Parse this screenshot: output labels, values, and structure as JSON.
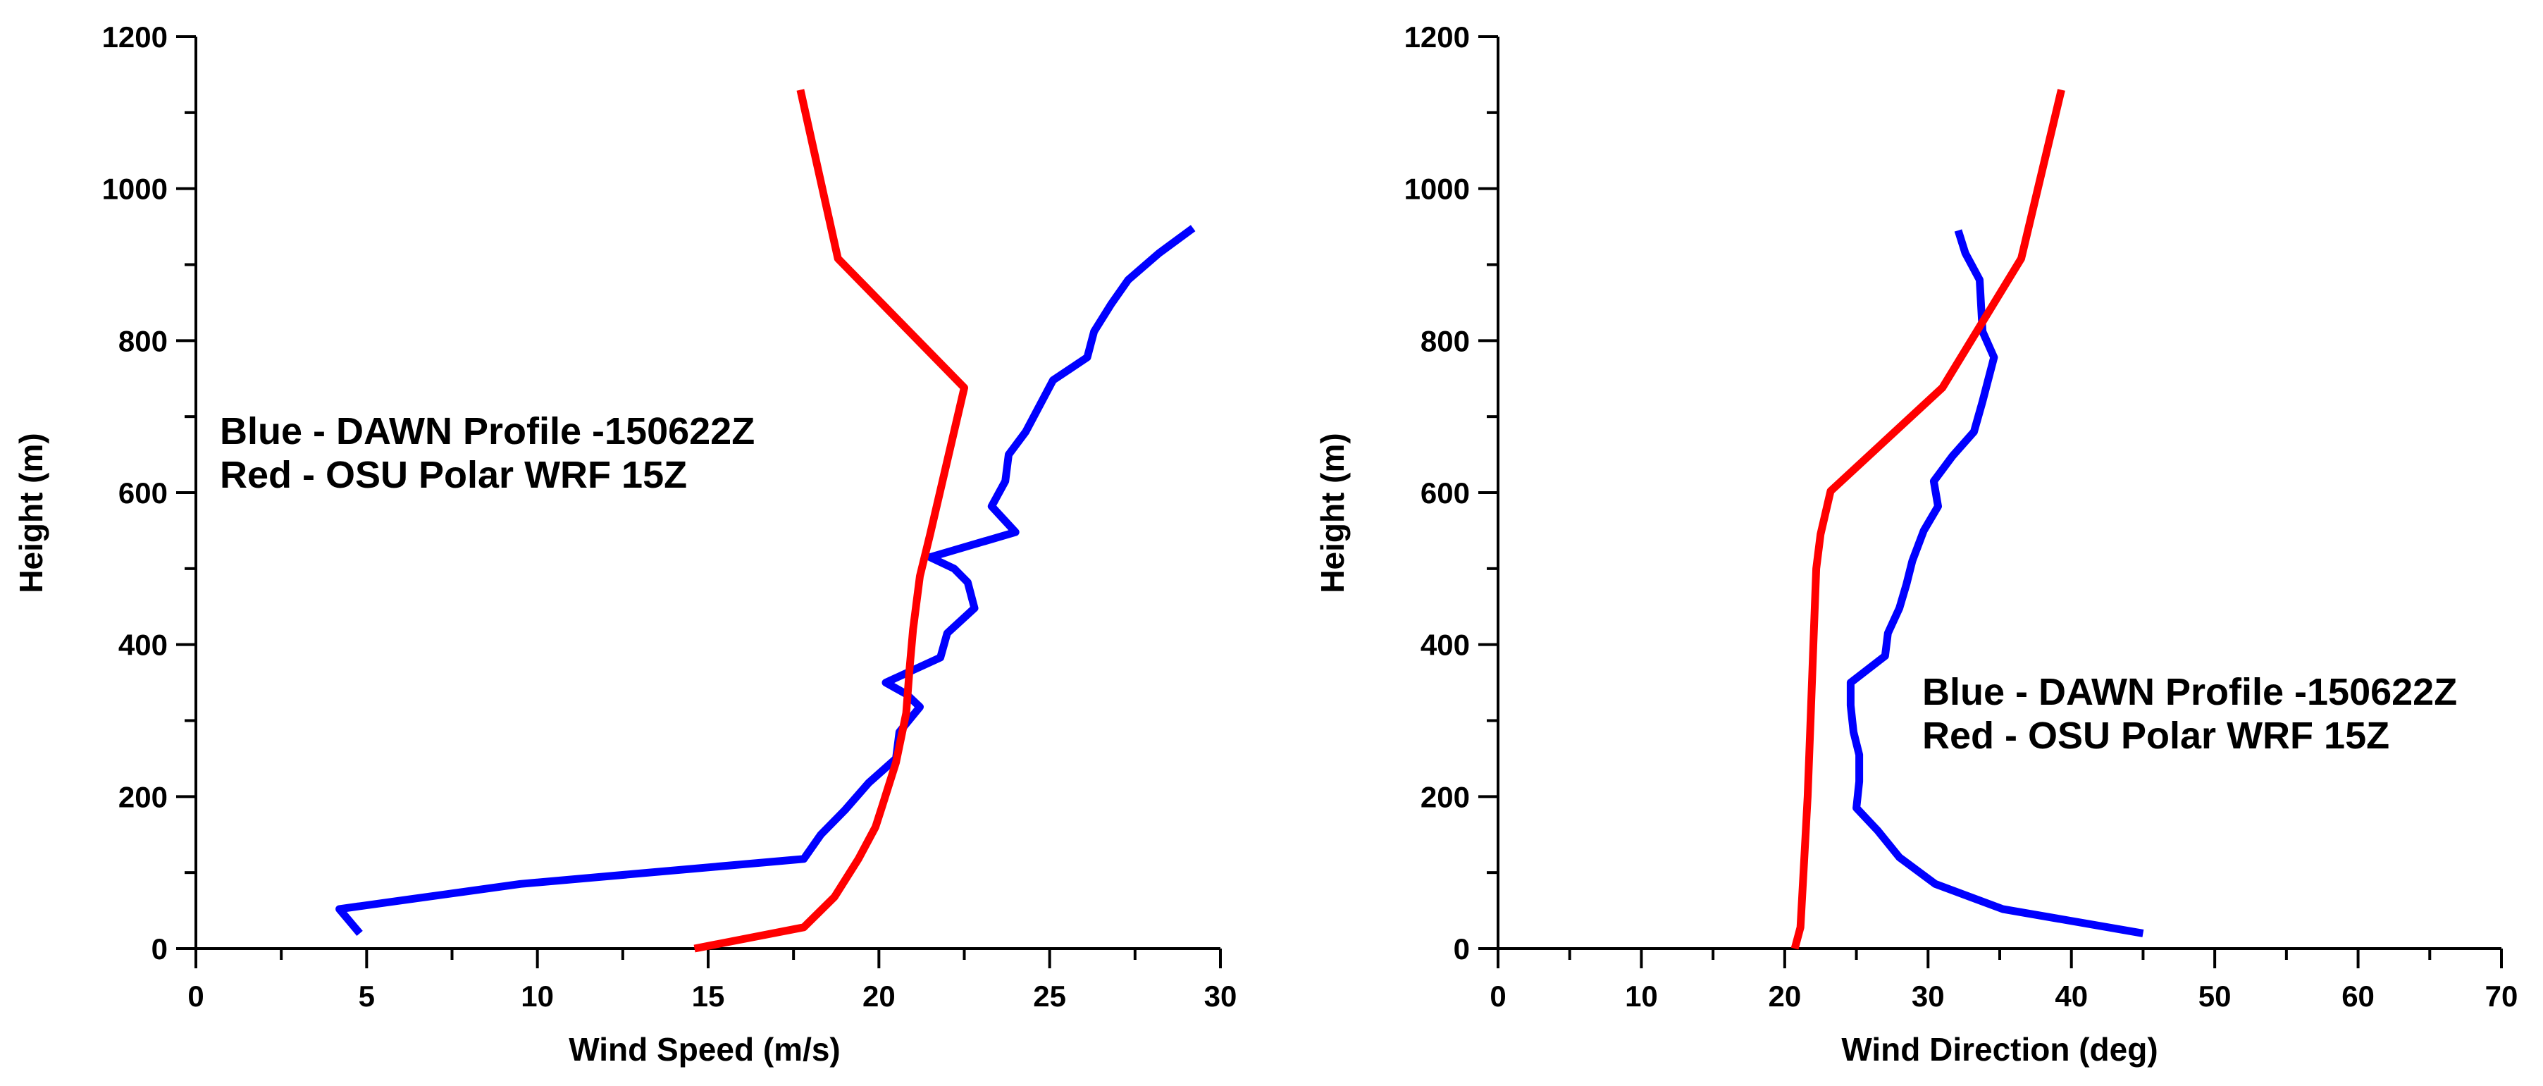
{
  "colors": {
    "blue_series": "#0000ff",
    "red_series": "#ff0000",
    "axis": "#000000",
    "background": "#ffffff"
  },
  "chart_data": [
    {
      "type": "line",
      "title": "",
      "xlabel": "Wind Speed (m/s)",
      "ylabel": "Height (m)",
      "xlim": [
        0,
        30
      ],
      "ylim": [
        0,
        1200
      ],
      "xticks": [
        0,
        5,
        10,
        15,
        20,
        25,
        30
      ],
      "yticks": [
        0,
        200,
        400,
        600,
        800,
        1000,
        1200
      ],
      "x_minor_step": 2.5,
      "y_minor_step": 100,
      "grid": false,
      "legend": {
        "placement": "upper-left",
        "lines": [
          "Blue - DAWN Profile -150622Z",
          "Red - OSU Polar WRF 15Z"
        ]
      },
      "series": [
        {
          "name": "Blue - DAWN Profile -150622Z",
          "color": "blue",
          "points": [
            [
              4.8,
              20
            ],
            [
              4.2,
              52
            ],
            [
              9.5,
              85
            ],
            [
              17.8,
              118
            ],
            [
              18.3,
              150
            ],
            [
              19,
              182
            ],
            [
              19.7,
              218
            ],
            [
              20.5,
              250
            ],
            [
              20.6,
              285
            ],
            [
              21.2,
              318
            ],
            [
              20.8,
              335
            ],
            [
              20.2,
              350
            ],
            [
              21.8,
              383
            ],
            [
              22,
              415
            ],
            [
              22.8,
              448
            ],
            [
              22.6,
              482
            ],
            [
              22.2,
              500
            ],
            [
              21.5,
              515
            ],
            [
              24,
              548
            ],
            [
              23.3,
              582
            ],
            [
              23.7,
              615
            ],
            [
              23.8,
              650
            ],
            [
              24.3,
              680
            ],
            [
              25.1,
              748
            ],
            [
              26.1,
              778
            ],
            [
              26.3,
              812
            ],
            [
              26.8,
              848
            ],
            [
              27.3,
              880
            ],
            [
              28.2,
              915
            ],
            [
              29.2,
              948
            ]
          ]
        },
        {
          "name": "Red - OSU Polar WRF 15Z",
          "color": "red",
          "points": [
            [
              14.6,
              0
            ],
            [
              17.8,
              28
            ],
            [
              18.7,
              68
            ],
            [
              19.4,
              118
            ],
            [
              19.9,
              160
            ],
            [
              20.1,
              188
            ],
            [
              20.5,
              245
            ],
            [
              20.8,
              310
            ],
            [
              20.9,
              370
            ],
            [
              21,
              420
            ],
            [
              21.2,
              490
            ],
            [
              21.5,
              545
            ],
            [
              22.5,
              738
            ],
            [
              18.8,
              908
            ],
            [
              17.7,
              1130
            ]
          ]
        }
      ]
    },
    {
      "type": "line",
      "title": "",
      "xlabel": "Wind Direction (deg)",
      "ylabel": "Height (m)",
      "xlim": [
        0,
        70
      ],
      "ylim": [
        0,
        1200
      ],
      "xticks": [
        0,
        10,
        20,
        30,
        40,
        50,
        60,
        70
      ],
      "yticks": [
        0,
        200,
        400,
        600,
        800,
        1000,
        1200
      ],
      "x_minor_step": 5,
      "y_minor_step": 100,
      "grid": false,
      "legend": {
        "placement": "lower-right",
        "lines": [
          "Blue - DAWN Profile -150622Z",
          "Red - OSU Polar WRF 15Z"
        ]
      },
      "series": [
        {
          "name": "Blue - DAWN Profile -150622Z",
          "color": "blue",
          "points": [
            [
              45,
              20
            ],
            [
              35.2,
              52
            ],
            [
              30.5,
              85
            ],
            [
              28,
              120
            ],
            [
              26.5,
              155
            ],
            [
              25,
              185
            ],
            [
              25.2,
              220
            ],
            [
              25.2,
              255
            ],
            [
              24.8,
              285
            ],
            [
              24.6,
              320
            ],
            [
              24.6,
              350
            ],
            [
              27,
              385
            ],
            [
              27.2,
              415
            ],
            [
              28,
              448
            ],
            [
              28.5,
              480
            ],
            [
              28.9,
              510
            ],
            [
              29.7,
              550
            ],
            [
              30.7,
              582
            ],
            [
              30.4,
              615
            ],
            [
              31.7,
              648
            ],
            [
              33.2,
              680
            ],
            [
              33.8,
              720
            ],
            [
              34.6,
              778
            ],
            [
              33.8,
              812
            ],
            [
              33.6,
              880
            ],
            [
              32.6,
              915
            ],
            [
              32.1,
              945
            ]
          ]
        },
        {
          "name": "Red - OSU Polar WRF 15Z",
          "color": "red",
          "points": [
            [
              20.7,
              0
            ],
            [
              21.1,
              28
            ],
            [
              21.4,
              130
            ],
            [
              21.6,
              200
            ],
            [
              21.8,
              300
            ],
            [
              22,
              400
            ],
            [
              22.2,
              500
            ],
            [
              22.5,
              545
            ],
            [
              23.2,
              602
            ],
            [
              31,
              738
            ],
            [
              36.5,
              908
            ],
            [
              39.3,
              1130
            ]
          ]
        }
      ]
    }
  ]
}
